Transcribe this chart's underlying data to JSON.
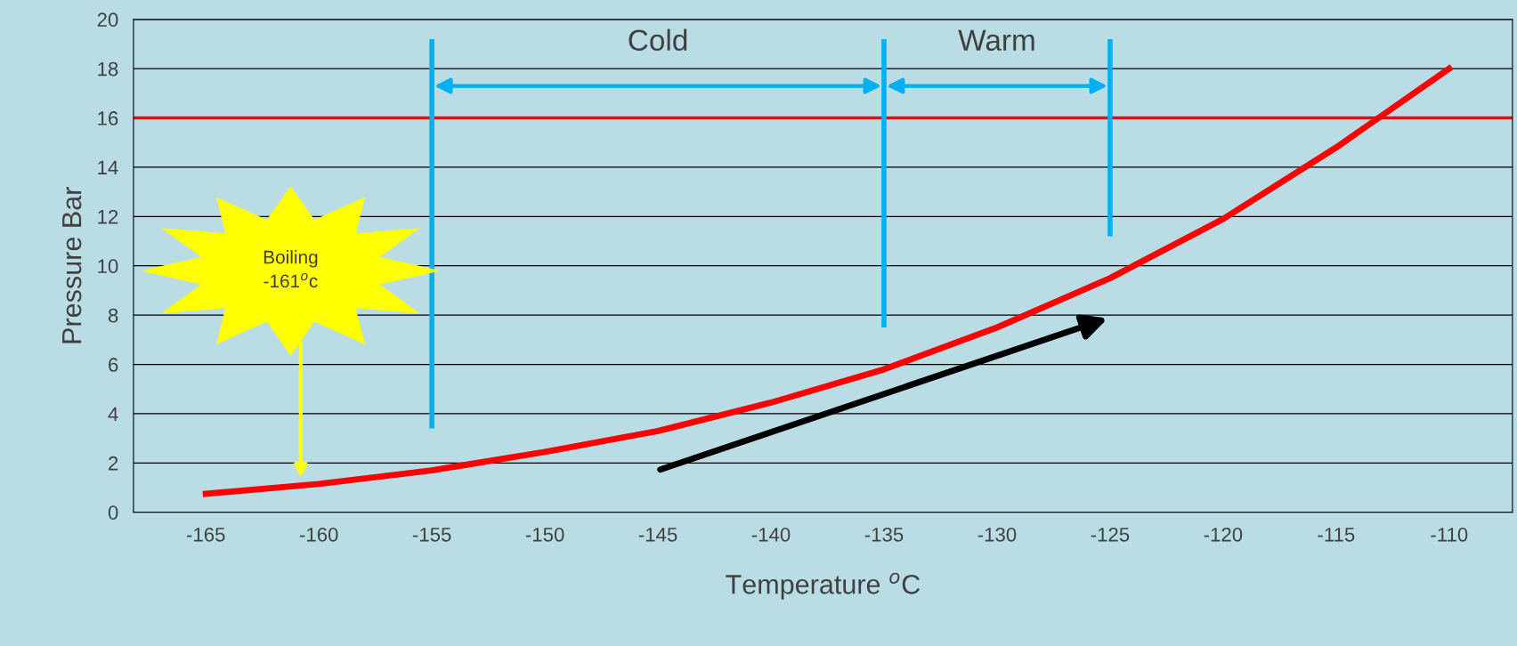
{
  "chart_data": {
    "type": "line",
    "xlabel": "Temperature $^{o}$C",
    "ylabel": "Pressure Bar",
    "categories": [
      "-165",
      "-160",
      "-155",
      "-150",
      "-145",
      "-140",
      "-135",
      "-130",
      "-125",
      "-120",
      "-115",
      "-110"
    ],
    "series": [
      {
        "color": "#ff0000",
        "values": [
          0.75,
          1.15,
          1.7,
          2.45,
          3.3,
          4.45,
          5.8,
          7.5,
          9.5,
          11.9,
          14.8,
          18.0
        ]
      }
    ],
    "ylim": [
      0,
      20
    ],
    "yticks": [
      0,
      2,
      4,
      6,
      8,
      10,
      12,
      14,
      16,
      18,
      20
    ],
    "grid": "y",
    "marker": "none",
    "line_style": "solid",
    "ref_lines": [
      {
        "axis": "y",
        "value": 16,
        "color": "#ff0000"
      },
      {
        "axis": "x",
        "value": "-155",
        "color": "#00b0f0"
      },
      {
        "axis": "x",
        "value": "-135",
        "color": "#00b0f0"
      },
      {
        "axis": "x",
        "value": "-125",
        "color": "#00b0f0"
      }
    ],
    "annotations": [
      "Cold",
      "Warm",
      "Boiling\n-161$^{o}$c"
    ]
  }
}
